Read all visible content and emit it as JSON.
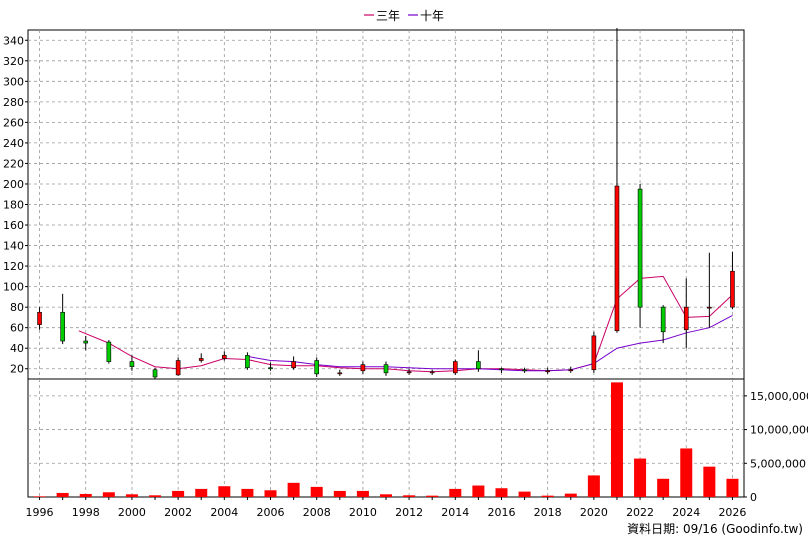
{
  "legend": [
    {
      "name": "三年",
      "color": "#cc0066"
    },
    {
      "name": "十年",
      "color": "#7700cc"
    }
  ],
  "footer": "資料日期: 09/16 (Goodinfo.tw)",
  "chart_data": [
    {
      "type": "candlestick",
      "xlim": [
        1995.5,
        2026.5
      ],
      "ylim": [
        10,
        350
      ],
      "x_ticks": [
        "1996",
        "1998",
        "2000",
        "2002",
        "2004",
        "2006",
        "2008",
        "2010",
        "2012",
        "2014",
        "2016",
        "2018",
        "2020",
        "2022",
        "2024",
        "2026"
      ],
      "y_ticks": [
        20,
        40,
        60,
        80,
        100,
        120,
        140,
        160,
        180,
        200,
        220,
        240,
        260,
        280,
        300,
        320,
        340
      ],
      "up_color": "#ff0000",
      "down_color": "#00cc00",
      "candles": [
        {
          "year": 1996,
          "open": 63,
          "close": 75,
          "high": 80,
          "low": 58
        },
        {
          "year": 1997,
          "open": 75,
          "close": 47,
          "high": 93,
          "low": 44
        },
        {
          "year": 1998,
          "open": 47,
          "close": 45,
          "high": 52,
          "low": 38
        },
        {
          "year": 1999,
          "open": 46,
          "close": 27,
          "high": 48,
          "low": 25
        },
        {
          "year": 2000,
          "open": 27,
          "close": 22,
          "high": 33,
          "low": 18
        },
        {
          "year": 2001,
          "open": 19,
          "close": 12,
          "high": 21,
          "low": 10
        },
        {
          "year": 2002,
          "open": 14,
          "close": 28,
          "high": 31,
          "low": 13
        },
        {
          "year": 2003,
          "open": 28,
          "close": 30,
          "high": 35,
          "low": 26
        },
        {
          "year": 2004,
          "open": 30,
          "close": 33,
          "high": 37,
          "low": 28
        },
        {
          "year": 2005,
          "open": 33,
          "close": 21,
          "high": 36,
          "low": 19
        },
        {
          "year": 2006,
          "open": 21,
          "close": 20,
          "high": 26,
          "low": 18
        },
        {
          "year": 2007,
          "open": 21,
          "close": 27,
          "high": 32,
          "low": 19
        },
        {
          "year": 2008,
          "open": 28,
          "close": 15,
          "high": 31,
          "low": 12
        },
        {
          "year": 2009,
          "open": 15,
          "close": 16,
          "high": 19,
          "low": 13
        },
        {
          "year": 2010,
          "open": 18,
          "close": 24,
          "high": 27,
          "low": 15
        },
        {
          "year": 2011,
          "open": 24,
          "close": 16,
          "high": 27,
          "low": 13
        },
        {
          "year": 2012,
          "open": 17,
          "close": 17,
          "high": 20,
          "low": 14
        },
        {
          "year": 2013,
          "open": 16,
          "close": 17,
          "high": 19,
          "low": 14
        },
        {
          "year": 2014,
          "open": 16,
          "close": 27,
          "high": 29,
          "low": 14
        },
        {
          "year": 2015,
          "open": 27,
          "close": 20,
          "high": 38,
          "low": 17
        },
        {
          "year": 2016,
          "open": 20,
          "close": 19,
          "high": 21,
          "low": 16
        },
        {
          "year": 2017,
          "open": 19,
          "close": 18,
          "high": 21,
          "low": 16
        },
        {
          "year": 2018,
          "open": 18,
          "close": 18,
          "high": 21,
          "low": 15
        },
        {
          "year": 2019,
          "open": 18,
          "close": 19,
          "high": 22,
          "low": 16
        },
        {
          "year": 2020,
          "open": 19,
          "close": 52,
          "high": 56,
          "low": 16
        },
        {
          "year": 2021,
          "open": 57,
          "close": 198,
          "high": 352,
          "low": 55
        },
        {
          "year": 2022,
          "open": 195,
          "close": 80,
          "high": 200,
          "low": 60
        },
        {
          "year": 2023,
          "open": 80,
          "close": 56,
          "high": 82,
          "low": 45
        },
        {
          "year": 2024,
          "open": 58,
          "close": 80,
          "high": 108,
          "low": 40
        },
        {
          "year": 2025,
          "open": 79,
          "close": 80,
          "high": 133,
          "low": 60
        },
        {
          "year": 2026,
          "open": 80,
          "close": 115,
          "high": 134,
          "low": 78
        }
      ],
      "series": [
        {
          "name": "三年",
          "color": "#cc0066",
          "x": [
            1997.7,
            1999,
            2000,
            2001,
            2002,
            2003,
            2004,
            2005,
            2006,
            2007,
            2008,
            2009,
            2010,
            2011,
            2012,
            2013,
            2014,
            2015,
            2016,
            2017,
            2018,
            2019,
            2020,
            2021,
            2022,
            2023,
            2024,
            2025,
            2026
          ],
          "y": [
            57,
            45,
            32,
            22,
            20,
            23,
            30,
            29,
            24,
            23,
            23,
            21,
            20,
            20,
            18,
            17,
            18,
            20,
            20,
            19,
            18,
            19,
            25,
            88,
            108,
            110,
            70,
            71,
            92
          ]
        },
        {
          "name": "十年",
          "color": "#7700cc",
          "x": [
            2005,
            2006,
            2007,
            2008,
            2009,
            2010,
            2011,
            2012,
            2013,
            2014,
            2015,
            2016,
            2017,
            2018,
            2019,
            2020,
            2021,
            2022,
            2023,
            2024,
            2025,
            2026
          ],
          "y": [
            32,
            28,
            27,
            24,
            22,
            22,
            22,
            21,
            20,
            20,
            20,
            19,
            18,
            18,
            19,
            25,
            40,
            45,
            48,
            55,
            60,
            72
          ]
        }
      ]
    },
    {
      "type": "bar",
      "xlim": [
        1995.5,
        2026.5
      ],
      "ylim": [
        0,
        17500000
      ],
      "y_ticks": [
        "0",
        "5,000,000",
        "10,000,000",
        "15,000,000"
      ],
      "y_tick_values": [
        0,
        5000000,
        10000000,
        15000000
      ],
      "color": "#ff0000",
      "years": [
        1996,
        1997,
        1998,
        1999,
        2000,
        2001,
        2002,
        2003,
        2004,
        2005,
        2006,
        2007,
        2008,
        2009,
        2010,
        2011,
        2012,
        2013,
        2014,
        2015,
        2016,
        2017,
        2018,
        2019,
        2020,
        2021,
        2022,
        2023,
        2024,
        2025,
        2026
      ],
      "values": [
        100000,
        600000,
        450000,
        700000,
        400000,
        250000,
        900000,
        1200000,
        1600000,
        1200000,
        1000000,
        2100000,
        1500000,
        900000,
        900000,
        400000,
        250000,
        200000,
        1200000,
        1700000,
        1300000,
        800000,
        200000,
        500000,
        3200000,
        17000000,
        5700000,
        2700000,
        7200000,
        4500000,
        2700000
      ]
    }
  ]
}
